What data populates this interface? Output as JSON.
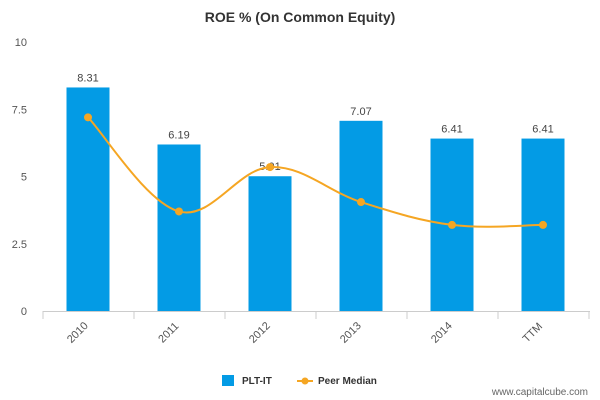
{
  "chart_data": {
    "type": "bar",
    "title": "ROE % (On Common Equity)",
    "categories": [
      "2010",
      "2011",
      "2012",
      "2013",
      "2014",
      "TTM"
    ],
    "series": [
      {
        "name": "PLT-IT",
        "kind": "bar",
        "color": "#039be5",
        "values": [
          8.31,
          6.19,
          5.01,
          7.07,
          6.41,
          6.41
        ],
        "labels": [
          "8.31",
          "6.19",
          "5.01",
          "7.07",
          "6.41",
          "6.41"
        ]
      },
      {
        "name": "Peer Median",
        "kind": "line",
        "color": "#f5a623",
        "values": [
          7.2,
          3.7,
          5.35,
          4.05,
          3.2,
          3.2
        ]
      }
    ],
    "yticks": [
      "0",
      "2.5",
      "5",
      "7.5",
      "10"
    ],
    "ylim": [
      0,
      10
    ],
    "grid": false,
    "legend_position": "bottom-center"
  },
  "watermark": "www.capitalcube.com"
}
